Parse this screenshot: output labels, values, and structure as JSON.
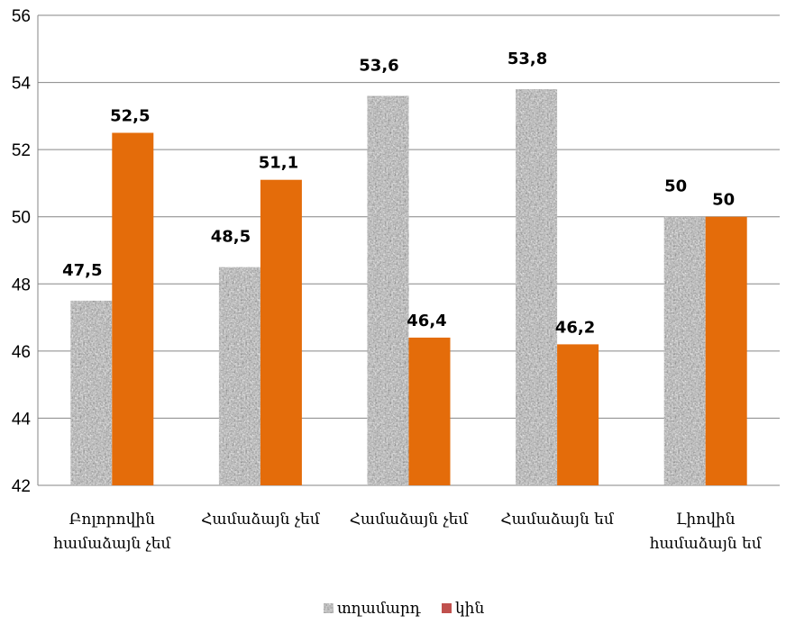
{
  "chart_data": {
    "type": "bar",
    "categories": [
      [
        "Բոլորովին",
        "համաձայն չեմ"
      ],
      [
        "Համաձայն չեմ"
      ],
      [
        "Համաձայն չեմ"
      ],
      [
        "Համաձայն եմ"
      ],
      [
        "Լիովին",
        "համաձայն եմ"
      ]
    ],
    "series": [
      {
        "name": "տղամարդ",
        "values": [
          47.5,
          48.5,
          53.6,
          53.8,
          50
        ],
        "labels": [
          "47,5",
          "48,5",
          "53,6",
          "53,8",
          "50"
        ],
        "pattern": "granite"
      },
      {
        "name": "կին",
        "values": [
          52.5,
          51.1,
          46.4,
          46.2,
          50
        ],
        "labels": [
          "52,5",
          "51,1",
          "46,4",
          "46,2",
          "50"
        ],
        "color": "#e46c0a"
      }
    ],
    "ylim": [
      42,
      56
    ],
    "yticks": [
      42,
      44,
      46,
      48,
      50,
      52,
      54,
      56
    ],
    "grid": true,
    "legend": "bottom",
    "gridline_color": "#868686"
  }
}
